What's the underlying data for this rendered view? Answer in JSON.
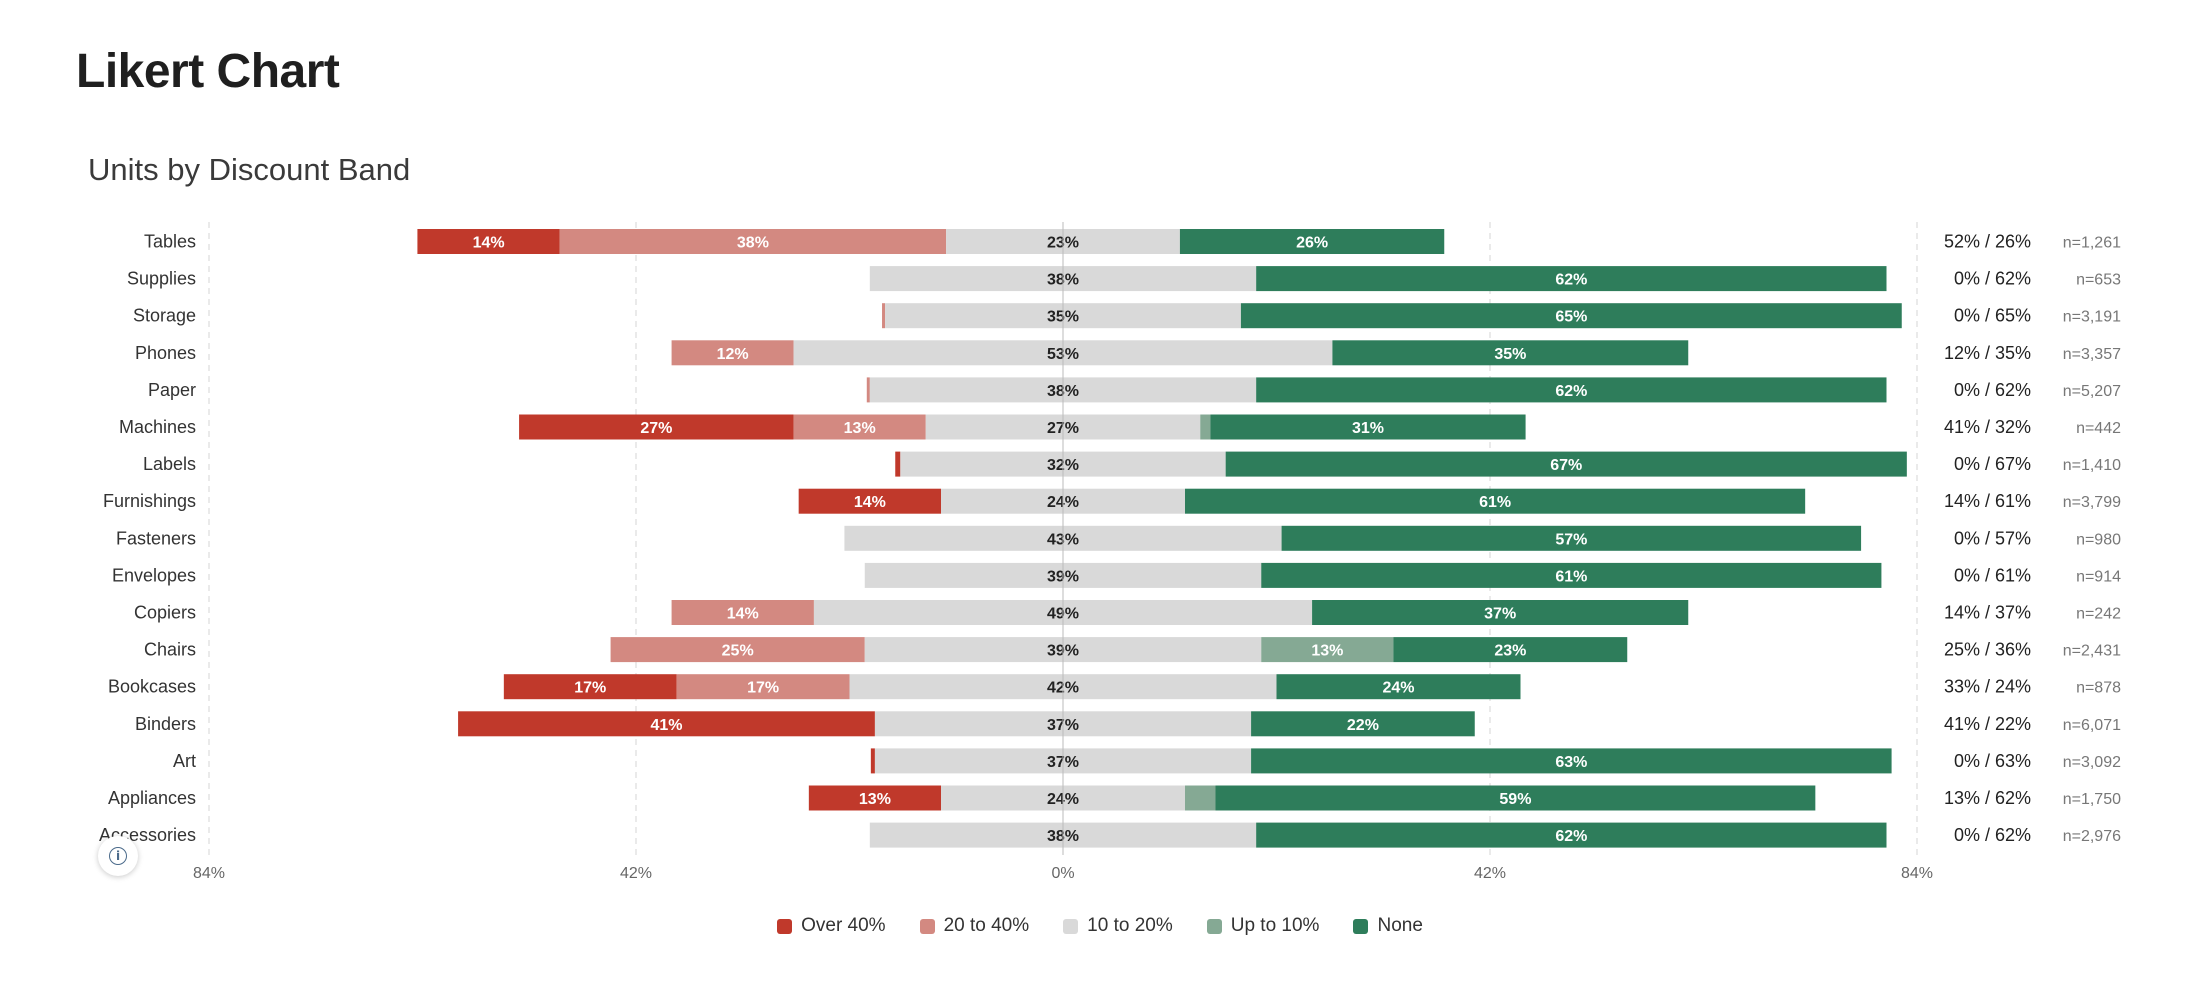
{
  "page": {
    "title": "Likert Chart"
  },
  "chart_data": {
    "type": "bar",
    "subtype": "diverging-stacked-bar",
    "title": "Units by Discount Band",
    "categories": [
      "Tables",
      "Supplies",
      "Storage",
      "Phones",
      "Paper",
      "Machines",
      "Labels",
      "Furnishings",
      "Fasteners",
      "Envelopes",
      "Copiers",
      "Chairs",
      "Bookcases",
      "Binders",
      "Art",
      "Appliances",
      "Accessories"
    ],
    "series": [
      {
        "name": "Over 40%",
        "color": "#c0392b",
        "side": "negative",
        "values": [
          14,
          0,
          0,
          0,
          0,
          27,
          0.5,
          14,
          0,
          0,
          0,
          0,
          17,
          41,
          0.4,
          13,
          0
        ]
      },
      {
        "name": "20 to 40%",
        "color": "#d38981",
        "side": "negative",
        "values": [
          38,
          0,
          0.3,
          12,
          0.3,
          13,
          0,
          0,
          0,
          0,
          14,
          25,
          17,
          0,
          0,
          0,
          0
        ]
      },
      {
        "name": "10 to 20%",
        "color": "#d9d9d9",
        "side": "split",
        "values": [
          23,
          38,
          35,
          53,
          38,
          27,
          32,
          24,
          43,
          39,
          49,
          39,
          42,
          37,
          37,
          24,
          38
        ]
      },
      {
        "name": "Up to 10%",
        "color": "#85a994",
        "side": "positive",
        "values": [
          0,
          0,
          0,
          0,
          0,
          1,
          0,
          0,
          0,
          0,
          0,
          13,
          0,
          0,
          0,
          3,
          0
        ]
      },
      {
        "name": "None",
        "color": "#2e7d5b",
        "side": "positive",
        "values": [
          26,
          62,
          65,
          35,
          62,
          31,
          67,
          61,
          57,
          61,
          37,
          23,
          24,
          22,
          63,
          59,
          62
        ]
      }
    ],
    "segment_labels": [
      [
        "14%",
        "38%",
        "23%",
        "",
        "26%"
      ],
      [
        "",
        "",
        "38%",
        "",
        "62%"
      ],
      [
        "",
        "",
        "35%",
        "",
        "65%"
      ],
      [
        "",
        "12%",
        "53%",
        "",
        "35%"
      ],
      [
        "",
        "",
        "38%",
        "",
        "62%"
      ],
      [
        "27%",
        "13%",
        "27%",
        "",
        "31%"
      ],
      [
        "",
        "",
        "32%",
        "",
        "67%"
      ],
      [
        "14%",
        "",
        "24%",
        "",
        "61%"
      ],
      [
        "",
        "",
        "43%",
        "",
        "57%"
      ],
      [
        "",
        "",
        "39%",
        "",
        "61%"
      ],
      [
        "",
        "14%",
        "49%",
        "",
        "37%"
      ],
      [
        "",
        "25%",
        "39%",
        "13%",
        "23%"
      ],
      [
        "17%",
        "17%",
        "42%",
        "",
        "24%"
      ],
      [
        "41%",
        "",
        "37%",
        "",
        "22%"
      ],
      [
        "",
        "",
        "37%",
        "",
        "63%"
      ],
      [
        "13%",
        "",
        "24%",
        "",
        "59%"
      ],
      [
        "",
        "",
        "38%",
        "",
        "62%"
      ]
    ],
    "right_labels": [
      "52% / 26%",
      "0% / 62%",
      "0% / 65%",
      "12% / 35%",
      "0% / 62%",
      "41% / 32%",
      "0% / 67%",
      "14% / 61%",
      "0% / 57%",
      "0% / 61%",
      "14% / 37%",
      "25% / 36%",
      "33% / 24%",
      "41% / 22%",
      "0% / 63%",
      "13% / 62%",
      "0% / 62%"
    ],
    "n_labels": [
      "n=1,261",
      "n=653",
      "n=3,191",
      "n=3,357",
      "n=5,207",
      "n=442",
      "n=1,410",
      "n=3,799",
      "n=980",
      "n=914",
      "n=242",
      "n=2,431",
      "n=878",
      "n=6,071",
      "n=3,092",
      "n=1,750",
      "n=2,976"
    ],
    "xlim": [
      -84,
      84
    ],
    "x_ticks": [
      -84,
      -42,
      0,
      42,
      84
    ],
    "x_tick_labels": [
      "84%",
      "42%",
      "0%",
      "42%",
      "84%"
    ],
    "grid": true,
    "legend_position": "bottom"
  },
  "info_button": {
    "icon": "info-icon",
    "glyph": "i"
  }
}
